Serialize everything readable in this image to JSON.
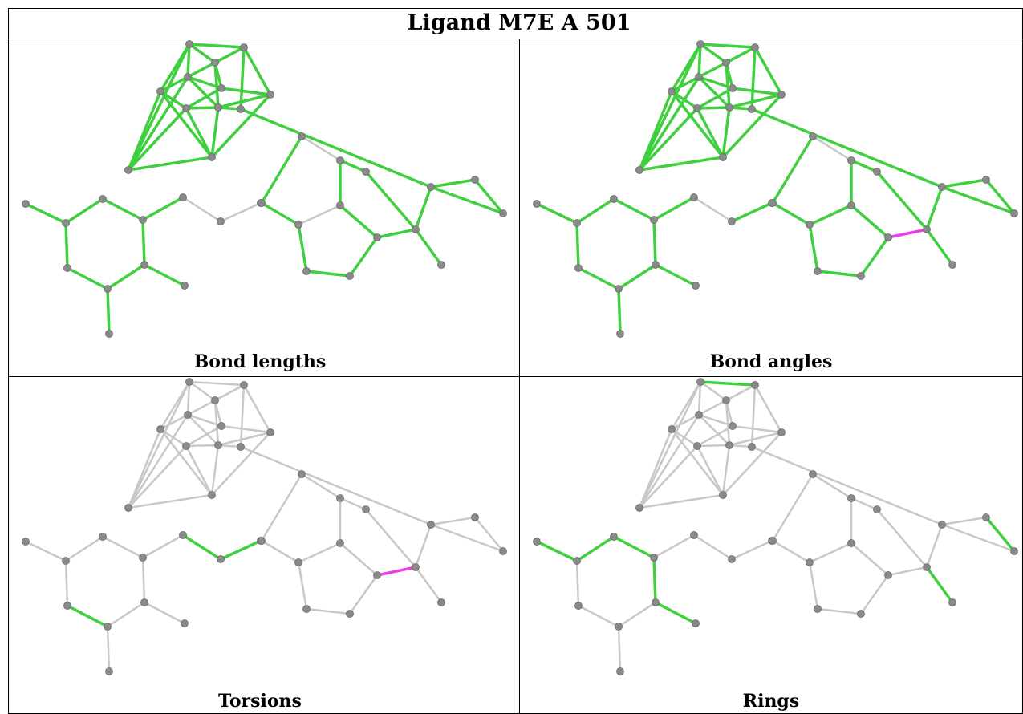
{
  "title": "Ligand M7E A 501",
  "colors": {
    "default": "#c8c8c8",
    "green": "#3fcf3f",
    "magenta": "#e83ee8",
    "atom": "#8a8a8a"
  },
  "panels": [
    {
      "caption": "Bond lengths",
      "bond_colors": {
        "14-15": "gray",
        "12-20": "gray",
        "13-9": "gray",
        "13-12": "gray",
        "7-4": "gray",
        "12-10": "gray",
        "13-10": "gray",
        "10-11": "gray",
        "11-12": "gray",
        "14-6": "gray",
        "6-15": "gray",
        "17-9": "gray",
        "9-11": "gray",
        "9-12": "gray",
        "9-10": "gray",
        "13-16": "gray",
        "10-16": "gray"
      },
      "default": "green"
    },
    {
      "caption": "Bond angles",
      "bond_colors": {
        "21-22": "magenta",
        "21-18": "magenta",
        "18-17": "magenta",
        "17-9": "magenta",
        "9-26": "magenta",
        "26-24": "magenta",
        "24-32": "magenta",
        "32-2": "magenta",
        "2-4": "magenta",
        "7-4": "gray",
        "3-6": "magenta",
        "12-13": "gray",
        "9-10": "gray",
        "13-9": "gray",
        "12-11": "gray"
      },
      "default": "green"
    },
    {
      "caption": "Torsions",
      "bond_colors": {
        "4-5": "green",
        "5-6": "green",
        "6-15": "green",
        "15-17": "green",
        "17-9": "green",
        "9-10": "green",
        "10-11": "green",
        "11-9": "green",
        "17-18": "magenta",
        "18-20": "magenta"
      },
      "default": "gray"
    },
    {
      "caption": "Rings",
      "bond_colors": {
        "0-1": "green",
        "1-2": "green",
        "2-3": "green",
        "3-7": "green",
        "7-8": "green",
        "8-0": "green",
        "15-18": "green",
        "18-19": "green",
        "19-21": "green",
        "21-22": "green",
        "22-23": "green",
        "23-15": "green",
        "21-24": "green",
        "24-25": "green",
        "25-26": "green",
        "26-27": "green",
        "27-22": "green"
      },
      "default": "gray"
    }
  ]
}
